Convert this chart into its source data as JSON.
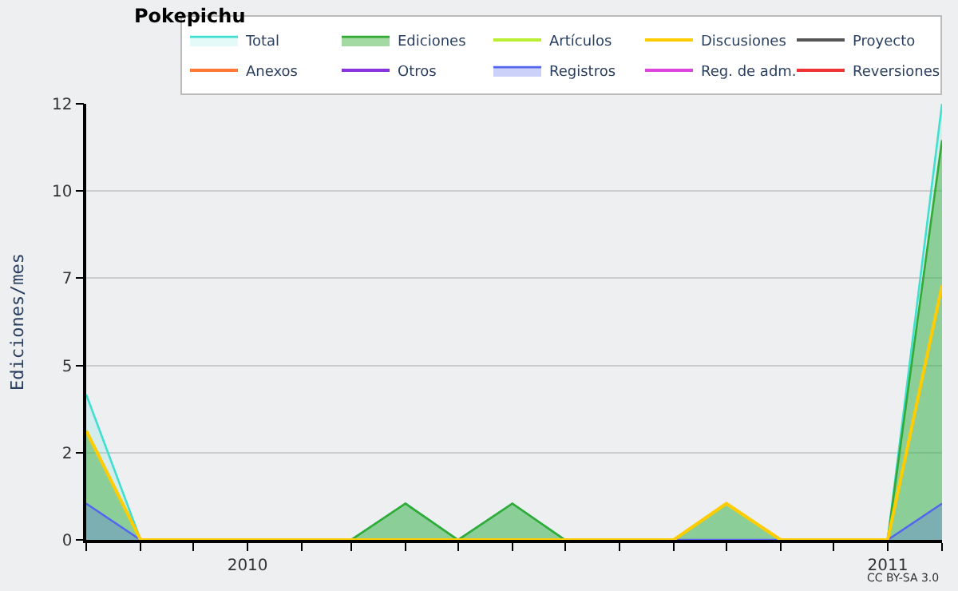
{
  "chart_data": {
    "type": "area",
    "title": "Pokepichu",
    "ylabel": "Ediciones/mes",
    "x": [
      "2009-10",
      "2009-11",
      "2009-12",
      "2010-01",
      "2010-02",
      "2010-03",
      "2010-04",
      "2010-05",
      "2010-06",
      "2010-07",
      "2010-08",
      "2010-09",
      "2010-10",
      "2010-11",
      "2010-12",
      "2011-01",
      "2011-02"
    ],
    "series": [
      {
        "name": "Total",
        "color": "#40e0d0",
        "values": [
          4,
          0,
          0,
          0,
          0,
          0,
          1,
          0,
          1,
          0,
          0,
          0,
          1,
          0,
          0,
          0,
          12
        ]
      },
      {
        "name": "Ediciones",
        "color": "#33aa33",
        "values": [
          3,
          0,
          0,
          0,
          0,
          0,
          1,
          0,
          1,
          0,
          0,
          0,
          1,
          0,
          0,
          0,
          11
        ]
      },
      {
        "name": "Artículos",
        "color": "#bbee33",
        "type": "line",
        "values": [
          null,
          null,
          null,
          null,
          null,
          null,
          null,
          null,
          null,
          null,
          null,
          null,
          null,
          null,
          null,
          null,
          null
        ]
      },
      {
        "name": "Discusiones",
        "color": "#ffcc00",
        "type": "line",
        "values": [
          3,
          0,
          0,
          0,
          0,
          0,
          0,
          0,
          0,
          0,
          0,
          0,
          1,
          0,
          0,
          0,
          7
        ]
      },
      {
        "name": "Proyecto",
        "color": "#555555",
        "type": "line",
        "values": [
          null,
          null,
          null,
          null,
          null,
          null,
          null,
          null,
          null,
          null,
          null,
          null,
          null,
          null,
          null,
          null,
          null
        ]
      },
      {
        "name": "Anexos",
        "color": "#ff7733",
        "type": "line",
        "values": [
          null,
          null,
          null,
          null,
          null,
          null,
          null,
          null,
          null,
          null,
          null,
          null,
          null,
          null,
          null,
          null,
          null
        ]
      },
      {
        "name": "Otros",
        "color": "#8833dd",
        "type": "line",
        "values": [
          null,
          null,
          null,
          null,
          null,
          null,
          null,
          null,
          null,
          null,
          null,
          null,
          null,
          null,
          null,
          null,
          null
        ]
      },
      {
        "name": "Registros",
        "color": "#5566ee",
        "values": [
          1,
          0,
          0,
          0,
          0,
          0,
          0,
          0,
          0,
          0,
          0,
          0,
          0,
          0,
          0,
          0,
          1
        ]
      },
      {
        "name": "Reg. de adm.",
        "color": "#dd44dd",
        "type": "line",
        "values": [
          null,
          null,
          null,
          null,
          null,
          null,
          null,
          null,
          null,
          null,
          null,
          null,
          null,
          null,
          null,
          null,
          null
        ]
      },
      {
        "name": "Reversiones",
        "color": "#ee3333",
        "type": "line",
        "values": [
          null,
          null,
          null,
          null,
          null,
          null,
          null,
          null,
          null,
          null,
          null,
          null,
          null,
          null,
          null,
          null,
          null
        ]
      }
    ],
    "xlim": [
      "2009-10",
      "2011-02"
    ],
    "xticks": [
      {
        "value": "2009-10",
        "label": null
      },
      {
        "value": "2009-11",
        "label": null
      },
      {
        "value": "2009-12",
        "label": null
      },
      {
        "value": "2010-01",
        "label": "2010"
      },
      {
        "value": "2010-02",
        "label": null
      },
      {
        "value": "2010-03",
        "label": null
      },
      {
        "value": "2010-04",
        "label": null
      },
      {
        "value": "2010-05",
        "label": null
      },
      {
        "value": "2010-06",
        "label": null
      },
      {
        "value": "2010-07",
        "label": null
      },
      {
        "value": "2010-08",
        "label": null
      },
      {
        "value": "2010-09",
        "label": null
      },
      {
        "value": "2010-10",
        "label": null
      },
      {
        "value": "2010-11",
        "label": null
      },
      {
        "value": "2010-12",
        "label": null
      },
      {
        "value": "2011-01",
        "label": "2011"
      },
      {
        "value": "2011-02",
        "label": null
      }
    ],
    "ylim": [
      0,
      12
    ],
    "yticks": [
      0,
      {
        "value": 2.4,
        "label": "2"
      },
      {
        "value": 4.8,
        "label": "5"
      },
      {
        "value": 7.2,
        "label": "7"
      },
      {
        "value": 9.6,
        "label": "10"
      },
      12
    ],
    "grid": "y",
    "legend": "top right",
    "marker": "none",
    "line_style": "solid",
    "annotations": [
      "CC BY-SA 3.0"
    ]
  }
}
